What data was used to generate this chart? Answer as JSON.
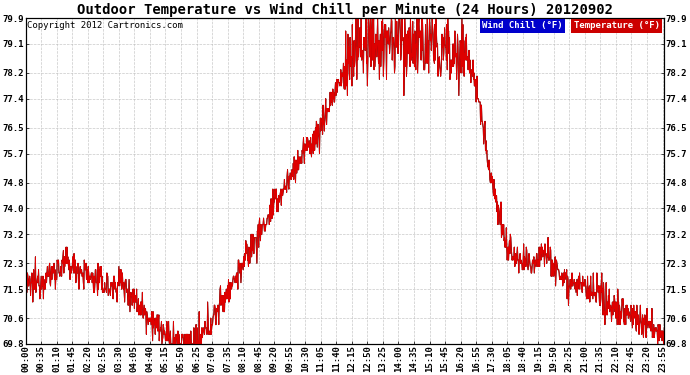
{
  "title": "Outdoor Temperature vs Wind Chill per Minute (24 Hours) 20120902",
  "copyright": "Copyright 2012 Cartronics.com",
  "ylim": [
    69.8,
    79.9
  ],
  "yticks": [
    69.8,
    70.6,
    71.5,
    72.3,
    73.2,
    74.0,
    74.8,
    75.7,
    76.5,
    77.4,
    78.2,
    79.1,
    79.9
  ],
  "background_color": "#ffffff",
  "plot_background": "#ffffff",
  "grid_color": "#bbbbbb",
  "temp_color": "#dd0000",
  "wind_chill_color": "#000000",
  "legend_wind_chill_bg": "#0000cc",
  "legend_temp_bg": "#cc0000",
  "n_points": 1440,
  "title_fontsize": 10,
  "tick_fontsize": 6.5,
  "copyright_fontsize": 6.5
}
